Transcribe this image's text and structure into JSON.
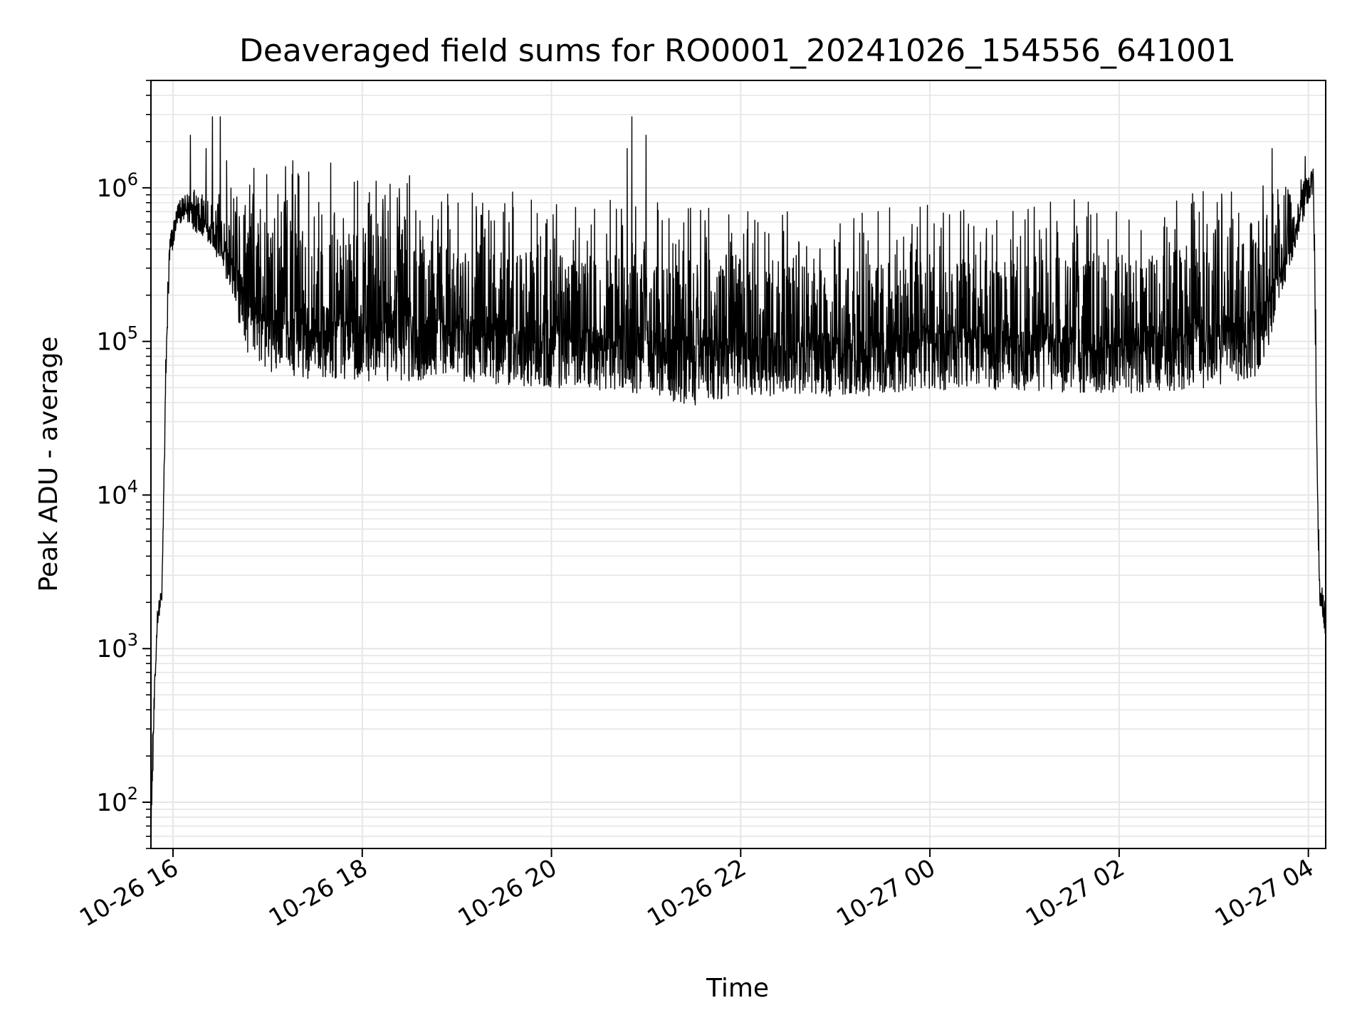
{
  "chart_data": {
    "type": "line",
    "title": "Deaveraged field sums for RO0001_20241026_154556_641001",
    "xlabel": "Time",
    "ylabel": "Peak ADU - average",
    "yscale": "log",
    "ylim": [
      50,
      5000000
    ],
    "xlim": [
      "2024-10-26 15:46",
      "2024-10-27 04:11"
    ],
    "grid": true,
    "line_color": "#000000",
    "grid_color": "#e6e6e6",
    "x_ticks": [
      {
        "value": "2024-10-26 16:00",
        "label": "10-26 16"
      },
      {
        "value": "2024-10-26 18:00",
        "label": "10-26 18"
      },
      {
        "value": "2024-10-26 20:00",
        "label": "10-26 20"
      },
      {
        "value": "2024-10-26 22:00",
        "label": "10-26 22"
      },
      {
        "value": "2024-10-27 00:00",
        "label": "10-27 00"
      },
      {
        "value": "2024-10-27 02:00",
        "label": "10-27 02"
      },
      {
        "value": "2024-10-27 04:00",
        "label": "10-27 04"
      }
    ],
    "y_ticks": [
      {
        "value": 100,
        "base": "10",
        "exp": "2"
      },
      {
        "value": 1000,
        "base": "10",
        "exp": "3"
      },
      {
        "value": 10000,
        "base": "10",
        "exp": "4"
      },
      {
        "value": 100000,
        "base": "10",
        "exp": "5"
      },
      {
        "value": 1000000,
        "base": "10",
        "exp": "6"
      }
    ],
    "series": [
      {
        "name": "",
        "envelope": [
          {
            "t": "2024-10-26 15:46",
            "low": 50,
            "high": 150
          },
          {
            "t": "2024-10-26 15:48",
            "low": 300,
            "high": 500
          },
          {
            "t": "2024-10-26 15:50",
            "low": 1400,
            "high": 1800
          },
          {
            "t": "2024-10-26 15:53",
            "low": 2000,
            "high": 2600
          },
          {
            "t": "2024-10-26 15:56",
            "low": 80000,
            "high": 200000
          },
          {
            "t": "2024-10-26 15:58",
            "low": 300000,
            "high": 500000
          },
          {
            "t": "2024-10-26 16:03",
            "low": 600000,
            "high": 800000
          },
          {
            "t": "2024-10-26 16:12",
            "low": 550000,
            "high": 1000000
          },
          {
            "t": "2024-10-26 16:24",
            "low": 400000,
            "high": 1200000
          },
          {
            "t": "2024-10-26 16:36",
            "low": 200000,
            "high": 1300000
          },
          {
            "t": "2024-10-26 16:48",
            "low": 80000,
            "high": 1350000
          },
          {
            "t": "2024-10-26 17:00",
            "low": 60000,
            "high": 1400000
          },
          {
            "t": "2024-10-26 17:30",
            "low": 55000,
            "high": 1400000
          },
          {
            "t": "2024-10-26 18:00",
            "low": 55000,
            "high": 1300000
          },
          {
            "t": "2024-10-26 19:00",
            "low": 55000,
            "high": 1000000
          },
          {
            "t": "2024-10-26 20:00",
            "low": 50000,
            "high": 900000
          },
          {
            "t": "2024-10-26 21:00",
            "low": 45000,
            "high": 800000
          },
          {
            "t": "2024-10-26 21:30",
            "low": 38000,
            "high": 800000
          },
          {
            "t": "2024-10-26 22:00",
            "low": 45000,
            "high": 700000
          },
          {
            "t": "2024-10-26 23:00",
            "low": 42000,
            "high": 700000
          },
          {
            "t": "2024-10-27 00:00",
            "low": 48000,
            "high": 800000
          },
          {
            "t": "2024-10-27 01:00",
            "low": 48000,
            "high": 800000
          },
          {
            "t": "2024-10-27 02:00",
            "low": 45000,
            "high": 900000
          },
          {
            "t": "2024-10-27 03:00",
            "low": 50000,
            "high": 1000000
          },
          {
            "t": "2024-10-27 03:30",
            "low": 60000,
            "high": 1100000
          },
          {
            "t": "2024-10-27 03:48",
            "low": 300000,
            "high": 1000000
          },
          {
            "t": "2024-10-27 04:00",
            "low": 800000,
            "high": 1300000
          },
          {
            "t": "2024-10-27 04:03",
            "low": 900000,
            "high": 1400000
          },
          {
            "t": "2024-10-27 04:04",
            "low": 200000,
            "high": 600000
          },
          {
            "t": "2024-10-27 04:06",
            "low": 6000,
            "high": 20000
          },
          {
            "t": "2024-10-27 04:07",
            "low": 2000,
            "high": 3000
          },
          {
            "t": "2024-10-27 04:11",
            "low": 1200,
            "high": 2000
          }
        ],
        "spikes": [
          {
            "t": "2024-10-26 16:11",
            "value": 2200000
          },
          {
            "t": "2024-10-26 16:21",
            "value": 1800000
          },
          {
            "t": "2024-10-26 16:25",
            "value": 2900000
          },
          {
            "t": "2024-10-26 16:30",
            "value": 2900000
          },
          {
            "t": "2024-10-26 16:34",
            "value": 1500000
          },
          {
            "t": "2024-10-26 17:16",
            "value": 1500000
          },
          {
            "t": "2024-10-26 17:40",
            "value": 1450000
          },
          {
            "t": "2024-10-26 18:30",
            "value": 1200000
          },
          {
            "t": "2024-10-26 20:48",
            "value": 1800000
          },
          {
            "t": "2024-10-26 20:51",
            "value": 2900000
          },
          {
            "t": "2024-10-26 21:00",
            "value": 2200000
          },
          {
            "t": "2024-10-27 03:37",
            "value": 1800000
          },
          {
            "t": "2024-10-27 03:58",
            "value": 1600000
          }
        ]
      }
    ]
  }
}
